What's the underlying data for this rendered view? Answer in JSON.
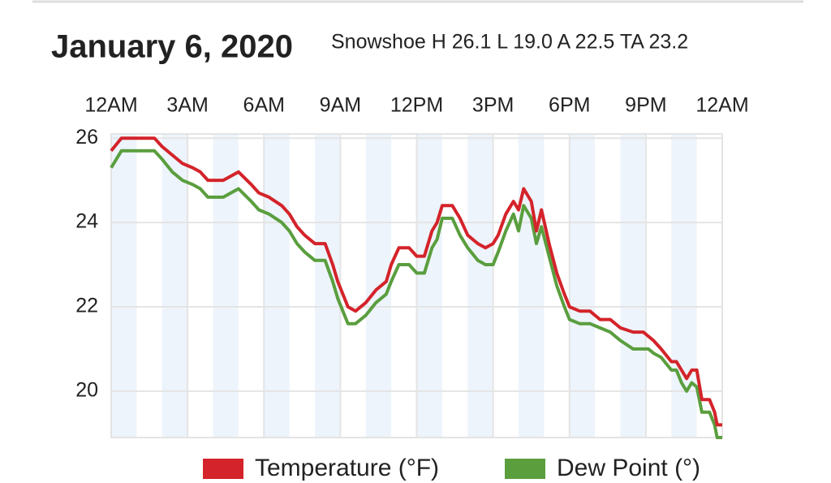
{
  "chart_data": {
    "type": "line",
    "title": "January 6, 2020",
    "subtitle": "Snowshoe H 26.1 L 19.0 A 22.5 TA 23.2",
    "x": [
      0,
      0.4,
      1.7,
      2.0,
      2.4,
      2.8,
      3.2,
      3.5,
      3.8,
      4.4,
      5.0,
      5.5,
      5.8,
      6.2,
      6.7,
      7.0,
      7.3,
      7.6,
      8.0,
      8.4,
      8.7,
      8.9,
      9.1,
      9.3,
      9.6,
      10.0,
      10.4,
      10.8,
      11.0,
      11.3,
      11.7,
      12.0,
      12.3,
      12.6,
      12.8,
      13.0,
      13.4,
      13.7,
      14.0,
      14.4,
      14.7,
      15.0,
      15.2,
      15.5,
      15.8,
      16.0,
      16.2,
      16.5,
      16.7,
      16.9,
      17.2,
      17.5,
      17.8,
      18.0,
      18.4,
      18.8,
      19.2,
      19.6,
      20.0,
      20.5,
      20.9,
      21.1,
      21.3,
      21.6,
      22.0,
      22.2,
      22.4,
      22.6,
      22.8,
      23.0,
      23.2,
      23.5,
      23.7,
      23.8,
      24
    ],
    "series": [
      {
        "name": "Temperature (°F)",
        "color": "#d4232a",
        "values": [
          25.7,
          26.0,
          26.0,
          25.8,
          25.6,
          25.4,
          25.3,
          25.2,
          25.0,
          25.0,
          25.2,
          24.9,
          24.7,
          24.6,
          24.4,
          24.2,
          23.9,
          23.7,
          23.5,
          23.5,
          23.0,
          22.6,
          22.3,
          22.0,
          21.9,
          22.1,
          22.4,
          22.6,
          23.0,
          23.4,
          23.4,
          23.2,
          23.2,
          23.8,
          24.0,
          24.4,
          24.4,
          24.1,
          23.7,
          23.5,
          23.4,
          23.5,
          23.7,
          24.2,
          24.5,
          24.3,
          24.8,
          24.5,
          23.8,
          24.3,
          23.5,
          22.8,
          22.3,
          22.0,
          21.9,
          21.9,
          21.7,
          21.7,
          21.5,
          21.4,
          21.4,
          21.3,
          21.2,
          21.0,
          20.7,
          20.7,
          20.5,
          20.3,
          20.5,
          20.5,
          19.8,
          19.8,
          19.5,
          19.2,
          19.2
        ]
      },
      {
        "name": "Dew Point (°)",
        "color": "#5a9e3e",
        "values": [
          25.3,
          25.7,
          25.7,
          25.5,
          25.2,
          25.0,
          24.9,
          24.8,
          24.6,
          24.6,
          24.8,
          24.5,
          24.3,
          24.2,
          24.0,
          23.8,
          23.5,
          23.3,
          23.1,
          23.1,
          22.6,
          22.2,
          21.9,
          21.6,
          21.6,
          21.8,
          22.1,
          22.3,
          22.6,
          23.0,
          23.0,
          22.8,
          22.8,
          23.4,
          23.6,
          24.1,
          24.1,
          23.7,
          23.4,
          23.1,
          23.0,
          23.0,
          23.3,
          23.8,
          24.2,
          23.8,
          24.4,
          24.1,
          23.5,
          23.9,
          23.2,
          22.5,
          22.0,
          21.7,
          21.6,
          21.6,
          21.5,
          21.4,
          21.2,
          21.0,
          21.0,
          21.0,
          20.9,
          20.8,
          20.5,
          20.5,
          20.2,
          20.0,
          20.2,
          20.1,
          19.5,
          19.5,
          19.2,
          18.9,
          18.9
        ]
      }
    ],
    "xlim": [
      0,
      24
    ],
    "xticks": [
      {
        "value": 0,
        "label": "12AM"
      },
      {
        "value": 3,
        "label": "3AM"
      },
      {
        "value": 6,
        "label": "6AM"
      },
      {
        "value": 9,
        "label": "9AM"
      },
      {
        "value": 12,
        "label": "12PM"
      },
      {
        "value": 15,
        "label": "3PM"
      },
      {
        "value": 18,
        "label": "6PM"
      },
      {
        "value": 21,
        "label": "9PM"
      },
      {
        "value": 24,
        "label": "12AM"
      }
    ],
    "ylim": [
      18.9,
      26.1
    ],
    "yticks": [
      20,
      22,
      24,
      26
    ],
    "grid": true
  }
}
